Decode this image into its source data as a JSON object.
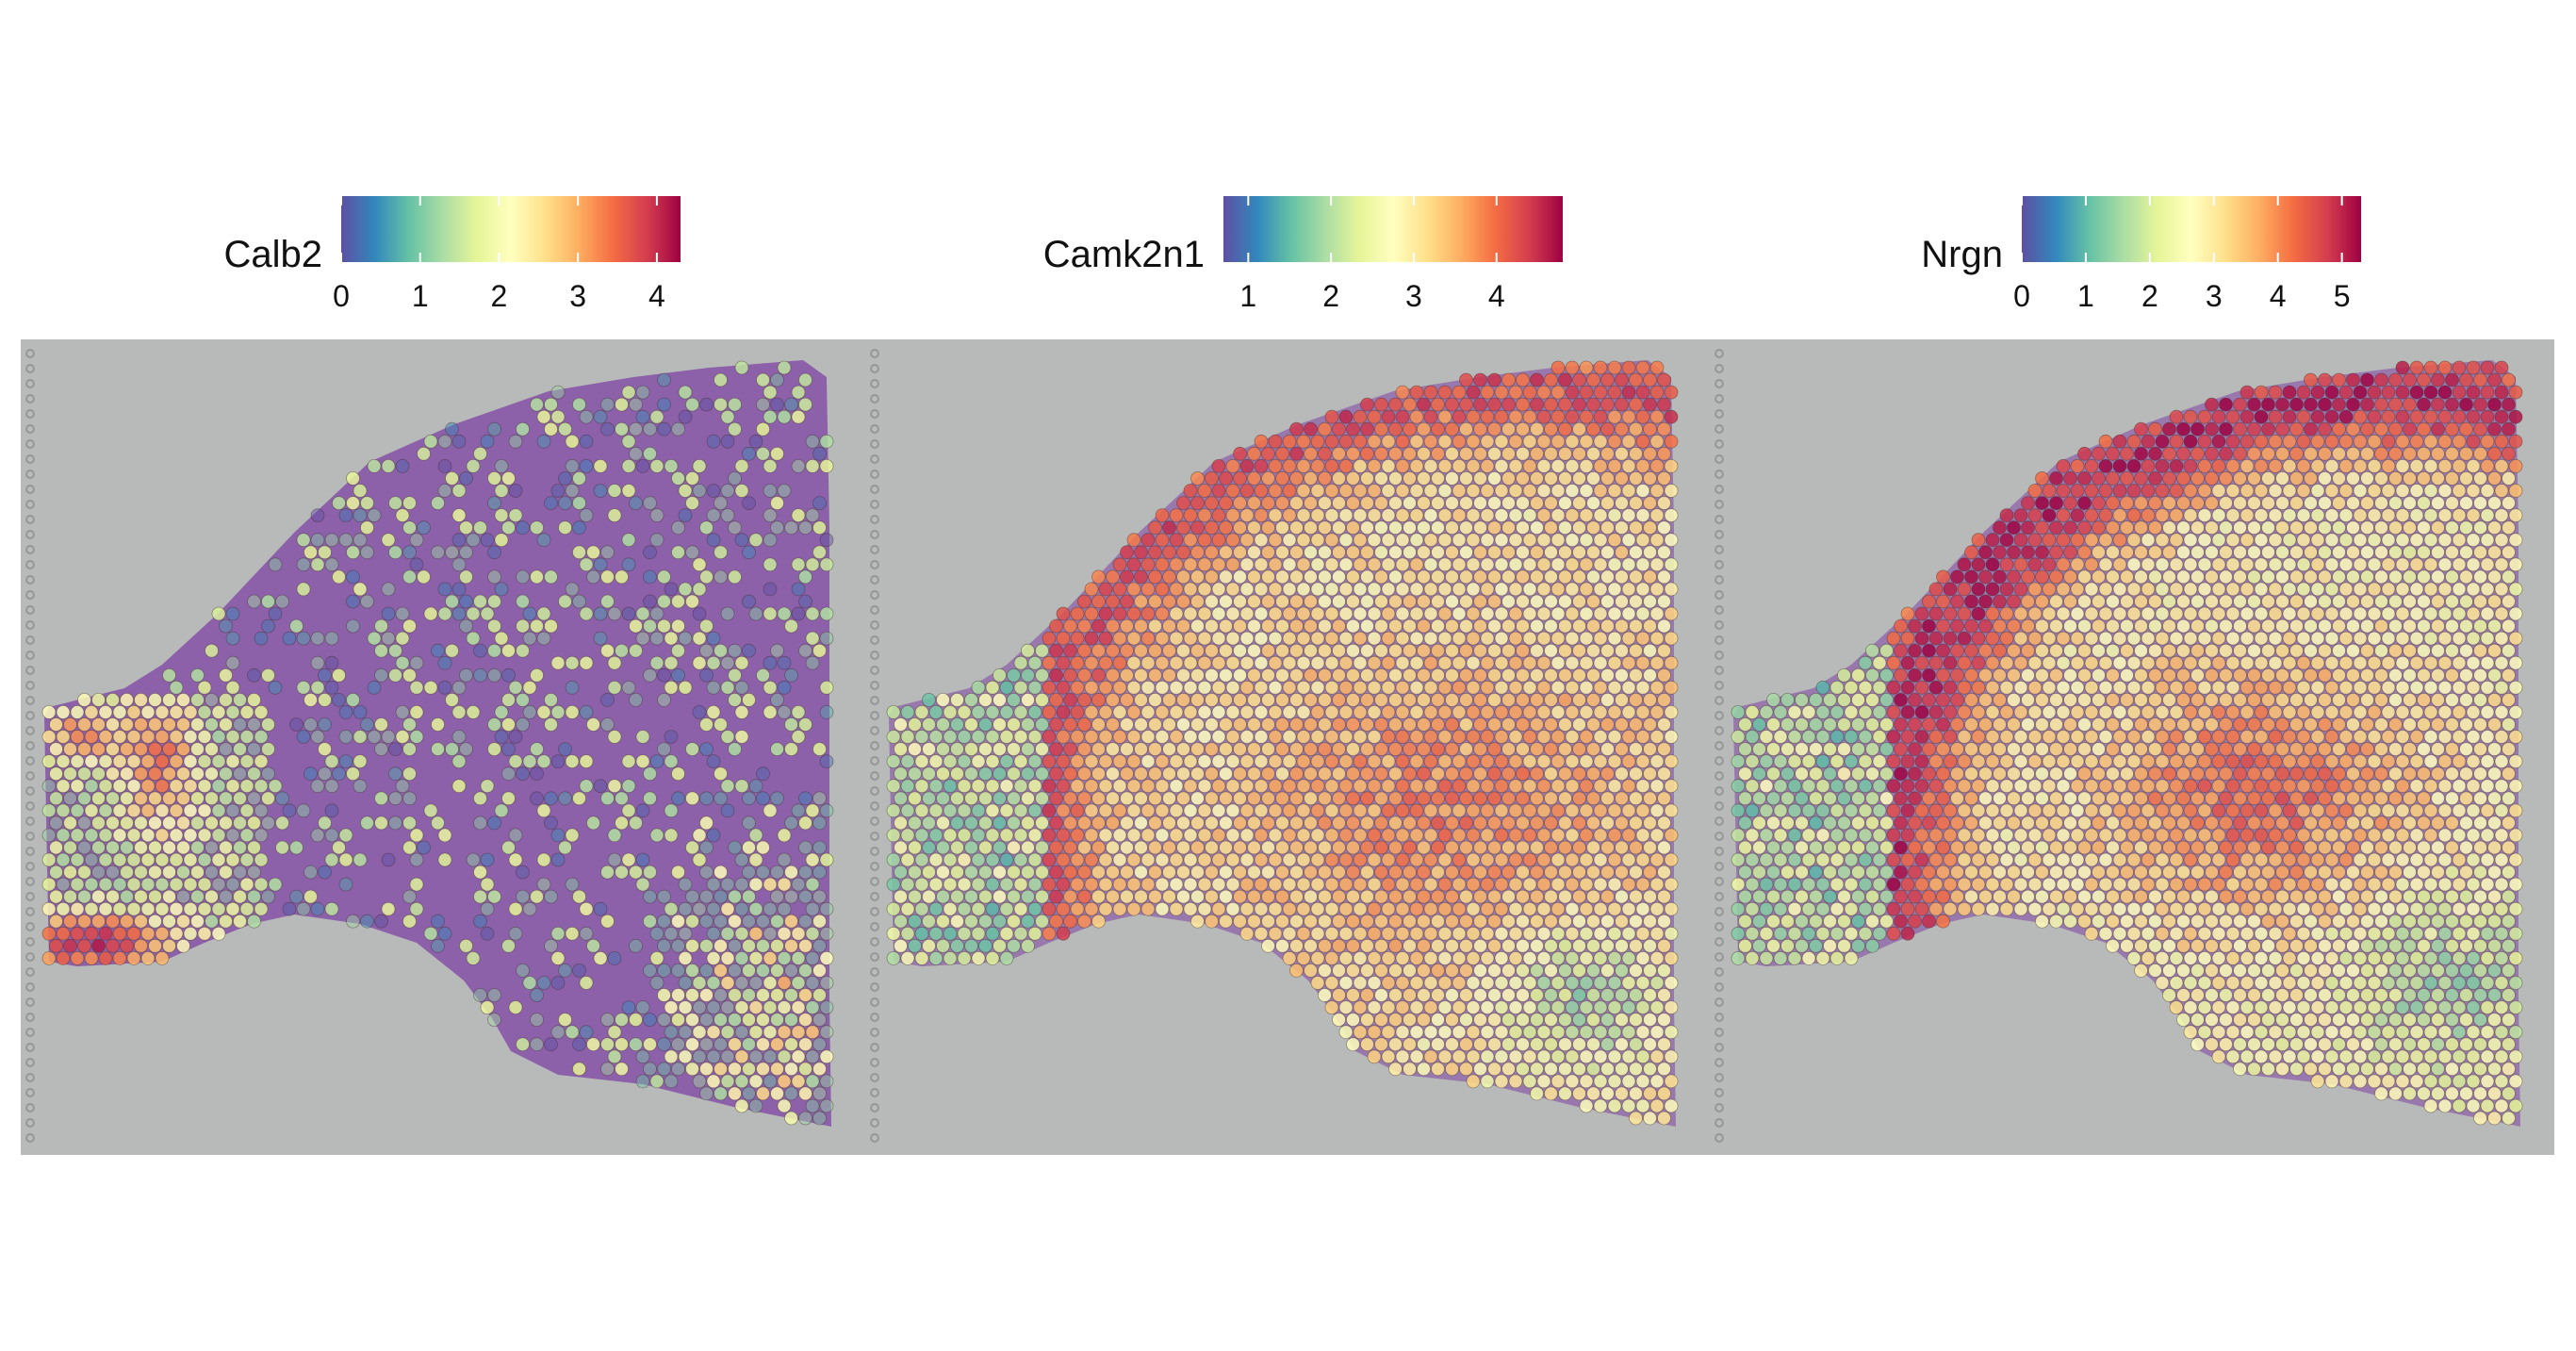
{
  "chart_data": [
    {
      "type": "heatmap",
      "title": "",
      "legend": {
        "title": "Calb2",
        "ticks": [
          "0",
          "1",
          "2",
          "3",
          "4"
        ],
        "range": [
          0,
          4.3
        ],
        "tick_values": [
          0,
          1,
          2,
          3,
          4
        ]
      },
      "gene": "calb2",
      "colormap": "Spectral (reversed)"
    },
    {
      "type": "heatmap",
      "title": "",
      "legend": {
        "title": "Camk2n1",
        "ticks": [
          "1",
          "2",
          "3",
          "4"
        ],
        "range": [
          0.7,
          4.8
        ],
        "tick_values": [
          1,
          2,
          3,
          4
        ]
      },
      "gene": "camk2n1",
      "colormap": "Spectral (reversed)"
    },
    {
      "type": "heatmap",
      "title": "",
      "legend": {
        "title": "Nrgn",
        "ticks": [
          "0",
          "1",
          "2",
          "3",
          "4",
          "5"
        ],
        "range": [
          0,
          5.3
        ],
        "tick_values": [
          0,
          1,
          2,
          3,
          4,
          5
        ]
      },
      "gene": "nrgn",
      "colormap": "Spectral (reversed)"
    }
  ],
  "colors": {
    "spectral": [
      "#5e4fa2",
      "#3288bd",
      "#66c2a5",
      "#abdda4",
      "#e6f598",
      "#ffffbf",
      "#fee08b",
      "#fdae61",
      "#f46d43",
      "#d53e4f",
      "#9e0142"
    ],
    "tissue": "#8a5ca8",
    "background": "#b8bab9"
  }
}
